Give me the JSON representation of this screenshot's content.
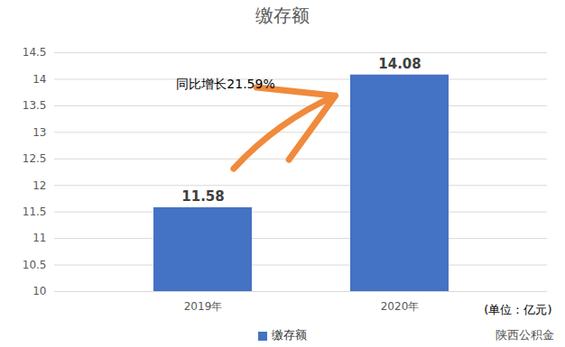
{
  "chart_data": {
    "type": "bar",
    "title": "缴存额",
    "categories": [
      "2019年",
      "2020年"
    ],
    "series": [
      {
        "name": "缴存额",
        "color": "#4472c4",
        "values": [
          11.58,
          14.08
        ]
      }
    ],
    "ylim": [
      10,
      14.5
    ],
    "yticks": [
      10,
      10.5,
      11,
      11.5,
      12,
      12.5,
      13,
      13.5,
      14,
      14.5
    ],
    "grid": true,
    "data_labels": true,
    "legend": "bottom",
    "annotations": [
      "同比增长21.59%",
      "(单位：亿元)",
      "陕西公积金"
    ]
  }
}
